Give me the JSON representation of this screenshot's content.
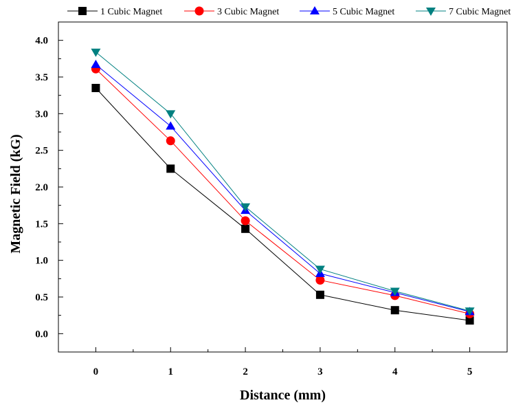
{
  "chart_data": {
    "type": "line",
    "title": "",
    "xlabel": "Distance (mm)",
    "ylabel": "Magnetic Field (kG)",
    "x": [
      0,
      1,
      2,
      3,
      4,
      5
    ],
    "x_ticks": [
      "0",
      "1",
      "2",
      "3",
      "4",
      "5"
    ],
    "y_ticks": [
      "0.0",
      "0.5",
      "1.0",
      "1.5",
      "2.0",
      "2.5",
      "3.0",
      "3.5",
      "4.0"
    ],
    "xlim": [
      -0.5,
      5.5
    ],
    "ylim": [
      -0.25,
      4.25
    ],
    "grid": false,
    "legend_position": "top",
    "series": [
      {
        "name": "1 Cubic Magnet",
        "marker": "square",
        "color": "#000000",
        "values": [
          3.35,
          2.25,
          1.43,
          0.53,
          0.32,
          0.18
        ]
      },
      {
        "name": "3 Cubic Magnet",
        "marker": "circle",
        "color": "#ff0000",
        "values": [
          3.61,
          2.63,
          1.54,
          0.73,
          0.52,
          0.27
        ]
      },
      {
        "name": "5 Cubic Magnet",
        "marker": "triangle-up",
        "color": "#0000ff",
        "values": [
          3.67,
          2.83,
          1.68,
          0.82,
          0.56,
          0.3
        ]
      },
      {
        "name": "7 Cubic Magnet",
        "marker": "triangle-down",
        "color": "#008080",
        "values": [
          3.84,
          3.0,
          1.73,
          0.88,
          0.58,
          0.31
        ]
      }
    ]
  }
}
